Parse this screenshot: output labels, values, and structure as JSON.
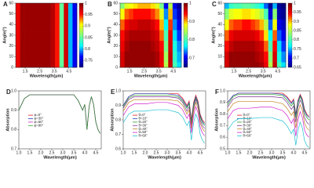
{
  "chart_data": [
    {
      "type": "heatmap",
      "label": "A",
      "x_label": "Wavelength(μm)",
      "y_label": "Angle(°)",
      "x": [
        1.0,
        1.3,
        1.6,
        1.9,
        2.2,
        2.5,
        2.8,
        3.1,
        3.4,
        3.7,
        4.0,
        4.3,
        4.6,
        4.9
      ],
      "y": [
        0,
        10,
        20,
        30,
        40,
        50,
        60
      ],
      "values": [
        [
          0.96,
          0.99,
          0.99,
          0.99,
          0.99,
          0.99,
          0.99,
          0.99,
          0.98,
          0.95,
          0.85,
          0.97,
          0.8,
          0.76
        ],
        [
          0.96,
          0.99,
          0.99,
          0.99,
          0.99,
          0.99,
          0.99,
          0.99,
          0.98,
          0.95,
          0.85,
          0.97,
          0.8,
          0.76
        ],
        [
          0.96,
          0.99,
          0.99,
          0.99,
          0.99,
          0.99,
          0.99,
          0.99,
          0.98,
          0.95,
          0.85,
          0.97,
          0.8,
          0.76
        ],
        [
          0.96,
          0.99,
          0.99,
          0.99,
          0.99,
          0.99,
          0.99,
          0.99,
          0.98,
          0.95,
          0.85,
          0.97,
          0.8,
          0.76
        ],
        [
          0.96,
          0.99,
          0.99,
          0.99,
          0.99,
          0.99,
          0.99,
          0.99,
          0.98,
          0.95,
          0.85,
          0.97,
          0.8,
          0.76
        ],
        [
          0.96,
          0.99,
          0.99,
          0.99,
          0.99,
          0.99,
          0.99,
          0.99,
          0.98,
          0.95,
          0.85,
          0.97,
          0.8,
          0.76
        ],
        [
          0.96,
          0.99,
          0.99,
          0.99,
          0.99,
          0.99,
          0.99,
          0.99,
          0.98,
          0.95,
          0.85,
          0.97,
          0.8,
          0.76
        ]
      ],
      "xlim": [
        0.85,
        5.05
      ],
      "xticks": [
        1.5,
        2.5,
        3.5,
        4.5
      ],
      "ylim": [
        0,
        60
      ],
      "yticks": [
        0,
        10,
        20,
        30,
        40,
        50,
        60
      ],
      "clim": [
        0.72,
        1.0
      ],
      "cticks": [
        0.75,
        0.8,
        0.85,
        0.9,
        0.95,
        1
      ],
      "colormap": [
        "#00007f",
        "#0000ff",
        "#00ffff",
        "#7fff7f",
        "#ffff00",
        "#ff0000",
        "#7f0000"
      ]
    },
    {
      "type": "heatmap",
      "label": "B",
      "x_label": "Wavelength(μm)",
      "y_label": "Angle(°)",
      "x": [
        1.0,
        1.3,
        1.6,
        1.9,
        2.2,
        2.5,
        2.8,
        3.1,
        3.4,
        3.7,
        4.0,
        4.3,
        4.6,
        4.9
      ],
      "y": [
        0,
        10,
        20,
        30,
        40,
        50,
        60
      ],
      "values": [
        [
          0.96,
          0.99,
          0.99,
          0.99,
          0.99,
          0.99,
          0.99,
          0.99,
          0.98,
          0.95,
          0.85,
          0.97,
          0.8,
          0.76
        ],
        [
          0.96,
          0.99,
          0.99,
          0.99,
          0.99,
          0.99,
          0.99,
          0.99,
          0.98,
          0.95,
          0.84,
          0.97,
          0.79,
          0.75
        ],
        [
          0.95,
          0.98,
          0.99,
          0.99,
          0.99,
          0.99,
          0.99,
          0.98,
          0.97,
          0.94,
          0.82,
          0.96,
          0.78,
          0.74
        ],
        [
          0.94,
          0.97,
          0.98,
          0.98,
          0.98,
          0.98,
          0.98,
          0.97,
          0.96,
          0.92,
          0.8,
          0.95,
          0.76,
          0.72
        ],
        [
          0.92,
          0.95,
          0.96,
          0.96,
          0.97,
          0.97,
          0.97,
          0.96,
          0.94,
          0.9,
          0.77,
          0.93,
          0.74,
          0.7
        ],
        [
          0.88,
          0.92,
          0.93,
          0.94,
          0.94,
          0.94,
          0.94,
          0.93,
          0.91,
          0.87,
          0.74,
          0.9,
          0.72,
          0.68
        ],
        [
          0.83,
          0.87,
          0.88,
          0.89,
          0.9,
          0.9,
          0.9,
          0.89,
          0.87,
          0.82,
          0.7,
          0.85,
          0.7,
          0.66
        ]
      ],
      "xlim": [
        0.85,
        5.05
      ],
      "xticks": [
        1.5,
        2.5,
        3.5,
        4.5
      ],
      "ylim": [
        0,
        60
      ],
      "yticks": [
        0,
        10,
        20,
        30,
        40,
        50,
        60
      ],
      "clim": [
        0.65,
        1.0
      ],
      "cticks": [
        0.7,
        0.8,
        0.9,
        1
      ],
      "colormap": [
        "#00007f",
        "#0000ff",
        "#00ffff",
        "#7fff7f",
        "#ffff00",
        "#ff0000",
        "#7f0000"
      ]
    },
    {
      "type": "heatmap",
      "label": "C",
      "x_label": "Wavelength(μm)",
      "y_label": "Angle(°)",
      "x": [
        1.0,
        1.3,
        1.6,
        1.9,
        2.2,
        2.5,
        2.8,
        3.1,
        3.4,
        3.7,
        4.0,
        4.3,
        4.6,
        4.9
      ],
      "y": [
        0,
        10,
        20,
        30,
        40,
        50,
        60
      ],
      "values": [
        [
          0.96,
          0.99,
          0.99,
          0.99,
          0.99,
          0.99,
          0.99,
          0.99,
          0.98,
          0.95,
          0.85,
          0.97,
          0.8,
          0.76
        ],
        [
          0.96,
          0.99,
          0.99,
          0.99,
          0.99,
          0.99,
          0.99,
          0.98,
          0.97,
          0.94,
          0.83,
          0.96,
          0.78,
          0.74
        ],
        [
          0.94,
          0.97,
          0.98,
          0.98,
          0.98,
          0.98,
          0.98,
          0.97,
          0.96,
          0.92,
          0.8,
          0.94,
          0.76,
          0.72
        ],
        [
          0.92,
          0.95,
          0.96,
          0.96,
          0.96,
          0.96,
          0.96,
          0.95,
          0.93,
          0.89,
          0.77,
          0.92,
          0.73,
          0.7
        ],
        [
          0.88,
          0.92,
          0.93,
          0.93,
          0.94,
          0.94,
          0.93,
          0.92,
          0.9,
          0.85,
          0.73,
          0.88,
          0.7,
          0.68
        ],
        [
          0.83,
          0.87,
          0.88,
          0.88,
          0.89,
          0.89,
          0.88,
          0.87,
          0.85,
          0.8,
          0.69,
          0.83,
          0.67,
          0.66
        ],
        [
          0.75,
          0.79,
          0.8,
          0.8,
          0.81,
          0.81,
          0.8,
          0.79,
          0.77,
          0.73,
          0.66,
          0.75,
          0.66,
          0.65
        ]
      ],
      "xlim": [
        0.85,
        5.05
      ],
      "xticks": [
        1.5,
        2.5,
        3.5,
        4.5
      ],
      "ylim": [
        0,
        60
      ],
      "yticks": [
        0,
        10,
        20,
        30,
        40,
        50,
        60
      ],
      "clim": [
        0.65,
        1.0
      ],
      "cticks": [
        0.65,
        0.7,
        0.75,
        0.8,
        0.85,
        0.9,
        0.95,
        1
      ],
      "colormap": [
        "#00007f",
        "#0000ff",
        "#00ffff",
        "#7fff7f",
        "#ffff00",
        "#ff0000",
        "#7f0000"
      ]
    },
    {
      "type": "line",
      "label": "D",
      "x_label": "Wavelength(μm)",
      "y_label": "Absorption",
      "x": [
        1.0,
        1.25,
        1.5,
        2.0,
        2.5,
        3.0,
        3.5,
        3.7,
        3.9,
        4.0,
        4.1,
        4.2,
        4.3,
        4.4,
        4.5,
        4.6,
        4.7
      ],
      "series": [
        {
          "name": "φ=0°",
          "color": "#e31a1c",
          "values": [
            0.9,
            0.96,
            0.98,
            0.98,
            0.98,
            0.98,
            0.98,
            0.95,
            0.9,
            0.93,
            0.8,
            0.92,
            0.97,
            0.93,
            0.84,
            0.8,
            0.78
          ]
        },
        {
          "name": "φ=30°",
          "color": "#1f3fbf",
          "values": [
            0.9,
            0.96,
            0.98,
            0.98,
            0.98,
            0.98,
            0.98,
            0.95,
            0.9,
            0.93,
            0.8,
            0.92,
            0.97,
            0.93,
            0.84,
            0.8,
            0.78
          ]
        },
        {
          "name": "φ=60°",
          "color": "#d020d0",
          "values": [
            0.9,
            0.96,
            0.98,
            0.98,
            0.98,
            0.98,
            0.98,
            0.95,
            0.9,
            0.93,
            0.8,
            0.92,
            0.97,
            0.93,
            0.84,
            0.8,
            0.78
          ]
        },
        {
          "name": "φ=90°",
          "color": "#2ca02c",
          "values": [
            0.9,
            0.96,
            0.98,
            0.98,
            0.98,
            0.98,
            0.98,
            0.95,
            0.9,
            0.93,
            0.8,
            0.92,
            0.97,
            0.93,
            0.84,
            0.8,
            0.78
          ]
        }
      ],
      "xlim": [
        1.0,
        4.75
      ],
      "xticks": [
        {
          "value": 1,
          "label": "1.0"
        },
        1.5,
        {
          "value": 2,
          "label": "2.0"
        },
        2.5,
        {
          "value": 3,
          "label": "3.0"
        },
        3.5,
        {
          "value": 4,
          "label": "4.0"
        },
        4.5
      ],
      "ylim": [
        0.7,
        1.0
      ],
      "yticks": [
        0.7,
        0.8,
        0.9,
        {
          "value": 1,
          "label": "1.0"
        }
      ]
    },
    {
      "type": "line",
      "label": "E",
      "x_label": "Wavelength(μm)",
      "y_label": "Absorption",
      "x": [
        1.0,
        1.25,
        1.5,
        2.0,
        2.5,
        3.0,
        3.5,
        3.7,
        3.9,
        4.0,
        4.1,
        4.2,
        4.3,
        4.4,
        4.5,
        4.6,
        4.7
      ],
      "series": [
        {
          "name": "θ=0°",
          "color": "#e31a1c",
          "values": [
            0.9,
            0.96,
            0.98,
            0.98,
            0.98,
            0.98,
            0.98,
            0.95,
            0.9,
            0.93,
            0.8,
            0.92,
            0.97,
            0.93,
            0.84,
            0.8,
            0.78
          ]
        },
        {
          "name": "θ=10°",
          "color": "#1f3fbf",
          "values": [
            0.9,
            0.96,
            0.98,
            0.98,
            0.98,
            0.98,
            0.97,
            0.94,
            0.89,
            0.92,
            0.79,
            0.91,
            0.96,
            0.92,
            0.83,
            0.79,
            0.77
          ]
        },
        {
          "name": "θ=20°",
          "color": "#2ca02c",
          "values": [
            0.89,
            0.95,
            0.97,
            0.97,
            0.97,
            0.97,
            0.96,
            0.93,
            0.88,
            0.91,
            0.78,
            0.9,
            0.95,
            0.91,
            0.82,
            0.78,
            0.76
          ]
        },
        {
          "name": "θ=30°",
          "color": "#7b3294",
          "values": [
            0.88,
            0.94,
            0.96,
            0.96,
            0.96,
            0.96,
            0.95,
            0.92,
            0.86,
            0.89,
            0.76,
            0.88,
            0.94,
            0.9,
            0.8,
            0.76,
            0.74
          ]
        },
        {
          "name": "θ=40°",
          "color": "#c08020",
          "values": [
            0.86,
            0.92,
            0.94,
            0.94,
            0.94,
            0.94,
            0.93,
            0.9,
            0.84,
            0.87,
            0.74,
            0.86,
            0.92,
            0.88,
            0.78,
            0.74,
            0.72
          ]
        },
        {
          "name": "θ=50°",
          "color": "#d020d0",
          "values": [
            0.83,
            0.89,
            0.91,
            0.91,
            0.92,
            0.92,
            0.9,
            0.87,
            0.81,
            0.84,
            0.71,
            0.83,
            0.89,
            0.85,
            0.75,
            0.71,
            0.69
          ]
        },
        {
          "name": "θ=60°",
          "color": "#20c0d0",
          "values": [
            0.78,
            0.84,
            0.86,
            0.86,
            0.87,
            0.87,
            0.85,
            0.82,
            0.76,
            0.79,
            0.66,
            0.78,
            0.84,
            0.8,
            0.7,
            0.66,
            0.64
          ]
        }
      ],
      "xlim": [
        1.0,
        4.75
      ],
      "xticks": [
        {
          "value": 1,
          "label": "1.0"
        },
        1.5,
        {
          "value": 2,
          "label": "2.0"
        },
        2.5,
        {
          "value": 3,
          "label": "3.0"
        },
        3.5,
        {
          "value": 4,
          "label": "4.0"
        },
        4.5
      ],
      "ylim": [
        0.6,
        1.0
      ],
      "yticks": [
        0.6,
        0.7,
        0.8,
        0.9,
        {
          "value": 1,
          "label": "1.0"
        }
      ]
    },
    {
      "type": "line",
      "label": "F",
      "x_label": "Wavelength(μm)",
      "y_label": "Absorption",
      "x": [
        1.0,
        1.25,
        1.5,
        2.0,
        2.5,
        3.0,
        3.5,
        3.7,
        3.9,
        4.0,
        4.1,
        4.2,
        4.3,
        4.4,
        4.5,
        4.6,
        4.7
      ],
      "series": [
        {
          "name": "θ=0°",
          "color": "#e31a1c",
          "values": [
            0.9,
            0.96,
            0.98,
            0.98,
            0.98,
            0.98,
            0.98,
            0.95,
            0.9,
            0.93,
            0.8,
            0.92,
            0.97,
            0.93,
            0.84,
            0.8,
            0.78
          ]
        },
        {
          "name": "θ=10°",
          "color": "#1f3fbf",
          "values": [
            0.9,
            0.96,
            0.98,
            0.98,
            0.98,
            0.98,
            0.97,
            0.94,
            0.89,
            0.92,
            0.79,
            0.91,
            0.96,
            0.92,
            0.83,
            0.79,
            0.77
          ]
        },
        {
          "name": "θ=20°",
          "color": "#2ca02c",
          "values": [
            0.88,
            0.95,
            0.97,
            0.97,
            0.97,
            0.97,
            0.96,
            0.92,
            0.87,
            0.9,
            0.77,
            0.89,
            0.95,
            0.9,
            0.81,
            0.77,
            0.75
          ]
        },
        {
          "name": "θ=30°",
          "color": "#7b3294",
          "values": [
            0.86,
            0.93,
            0.95,
            0.95,
            0.95,
            0.95,
            0.94,
            0.9,
            0.84,
            0.87,
            0.73,
            0.86,
            0.92,
            0.88,
            0.77,
            0.73,
            0.71
          ]
        },
        {
          "name": "θ=40°",
          "color": "#c08020",
          "values": [
            0.82,
            0.89,
            0.91,
            0.91,
            0.91,
            0.91,
            0.89,
            0.85,
            0.79,
            0.82,
            0.68,
            0.81,
            0.88,
            0.83,
            0.72,
            0.68,
            0.66
          ]
        },
        {
          "name": "θ=50°",
          "color": "#d020d0",
          "values": [
            0.76,
            0.83,
            0.85,
            0.85,
            0.86,
            0.86,
            0.83,
            0.79,
            0.72,
            0.76,
            0.61,
            0.75,
            0.82,
            0.77,
            0.66,
            0.62,
            0.6
          ]
        },
        {
          "name": "θ=60°",
          "color": "#20c0d0",
          "values": [
            0.66,
            0.73,
            0.76,
            0.76,
            0.77,
            0.77,
            0.74,
            0.7,
            0.63,
            0.67,
            0.53,
            0.66,
            0.73,
            0.68,
            0.57,
            0.53,
            0.51
          ]
        }
      ],
      "xlim": [
        1.0,
        4.75
      ],
      "xticks": [
        {
          "value": 1,
          "label": "1.0"
        },
        1.5,
        {
          "value": 2,
          "label": "2.0"
        },
        2.5,
        {
          "value": 3,
          "label": "3.0"
        },
        3.5,
        {
          "value": 4,
          "label": "4.0"
        },
        4.5
      ],
      "ylim": [
        0.5,
        1.0
      ],
      "yticks": [
        0.5,
        0.6,
        0.7,
        0.8,
        0.9,
        {
          "value": 1,
          "label": "1.0"
        }
      ]
    }
  ]
}
